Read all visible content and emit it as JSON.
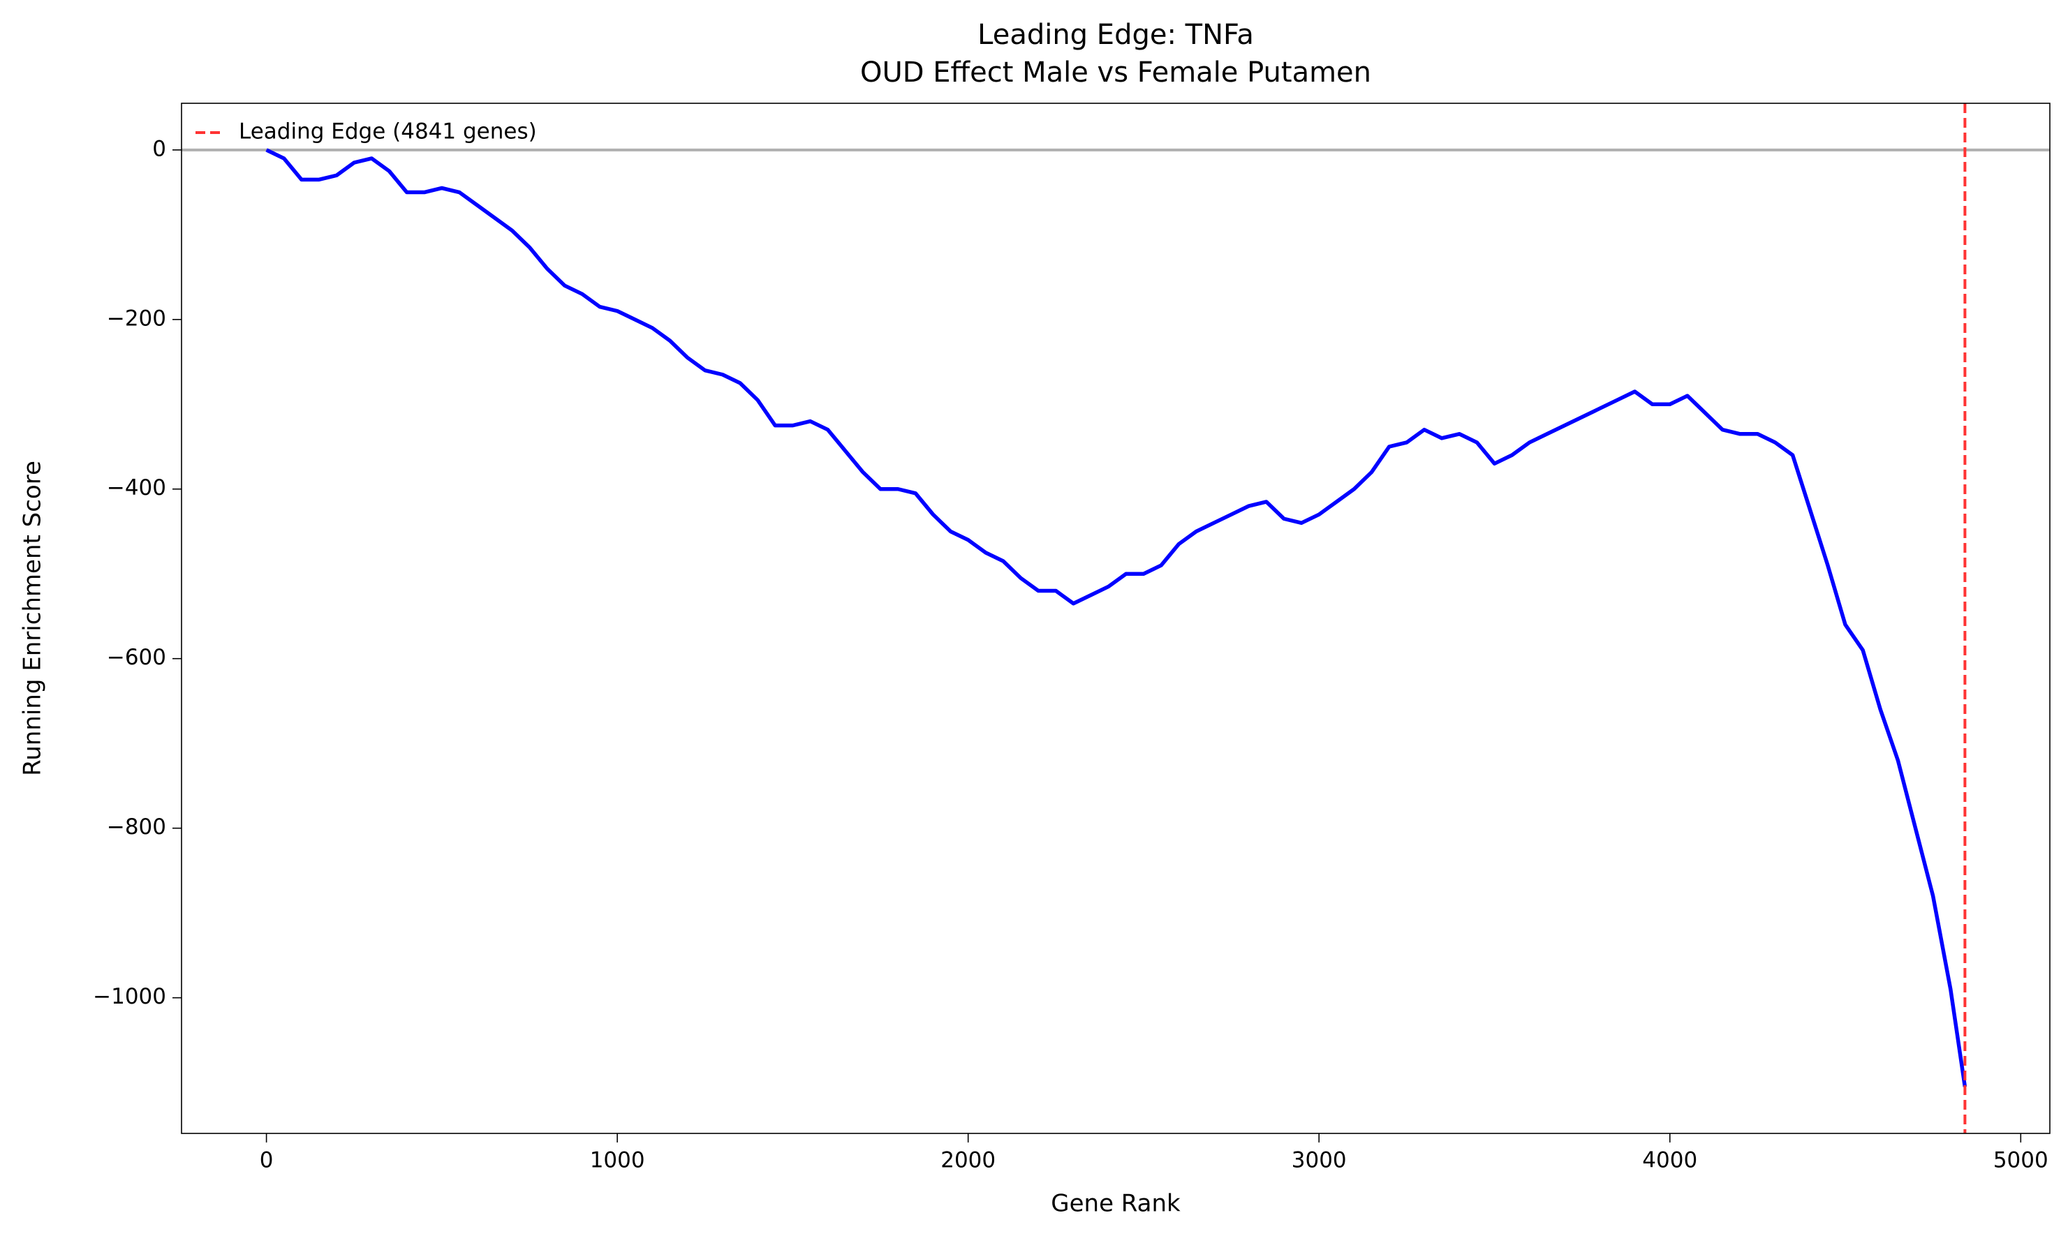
{
  "chart_data": {
    "type": "line",
    "title": "Leading Edge: TNFa",
    "subtitle": "OUD Effect Male vs Female Putamen",
    "x_label": "Gene Rank",
    "y_label": "Running Enrichment Score",
    "x": [
      0,
      50,
      100,
      150,
      200,
      250,
      300,
      350,
      400,
      450,
      500,
      550,
      600,
      650,
      700,
      750,
      800,
      850,
      900,
      950,
      1000,
      1050,
      1100,
      1150,
      1200,
      1250,
      1300,
      1350,
      1400,
      1450,
      1500,
      1550,
      1600,
      1650,
      1700,
      1750,
      1800,
      1850,
      1900,
      1950,
      2000,
      2050,
      2100,
      2150,
      2200,
      2250,
      2300,
      2350,
      2400,
      2450,
      2500,
      2550,
      2600,
      2650,
      2700,
      2750,
      2800,
      2850,
      2900,
      2950,
      3000,
      3050,
      3100,
      3150,
      3200,
      3250,
      3300,
      3350,
      3400,
      3450,
      3500,
      3550,
      3600,
      3650,
      3700,
      3750,
      3800,
      3850,
      3900,
      3950,
      4000,
      4050,
      4100,
      4150,
      4200,
      4250,
      4300,
      4350,
      4400,
      4450,
      4500,
      4550,
      4600,
      4650,
      4700,
      4750,
      4800,
      4841
    ],
    "series": [
      {
        "name": "Running Enrichment Score",
        "color": "#0000ff",
        "values": [
          0,
          -10,
          -35,
          -35,
          -30,
          -15,
          -10,
          -25,
          -50,
          -50,
          -45,
          -50,
          -65,
          -80,
          -95,
          -115,
          -140,
          -160,
          -170,
          -185,
          -190,
          -200,
          -210,
          -225,
          -245,
          -260,
          -265,
          -275,
          -295,
          -325,
          -325,
          -320,
          -330,
          -355,
          -380,
          -400,
          -400,
          -405,
          -430,
          -450,
          -460,
          -475,
          -485,
          -505,
          -520,
          -520,
          -535,
          -525,
          -515,
          -500,
          -500,
          -490,
          -465,
          -450,
          -440,
          -430,
          -420,
          -415,
          -435,
          -440,
          -430,
          -415,
          -400,
          -380,
          -350,
          -345,
          -330,
          -340,
          -335,
          -345,
          -370,
          -360,
          -345,
          -335,
          -325,
          -315,
          -305,
          -295,
          -285,
          -300,
          -300,
          -290,
          -310,
          -330,
          -335,
          -335,
          -345,
          -360,
          -425,
          -490,
          -560,
          -590,
          -660,
          -720,
          -800,
          -880,
          -990,
          -1105
        ]
      }
    ],
    "hline": {
      "value": 0,
      "color": "#b0b0b0"
    },
    "vline": {
      "value": 4841,
      "color": "#ff3333",
      "name": "Leading Edge (4841 genes)"
    },
    "xlim": [
      -242,
      5083
    ],
    "ylim": [
      -1160,
      55
    ],
    "xticks": [
      0,
      1000,
      2000,
      3000,
      4000,
      5000
    ],
    "yticks": [
      {
        "value": -1000,
        "label": "−1000"
      },
      {
        "value": -800,
        "label": "−800"
      },
      {
        "value": -600,
        "label": "−600"
      },
      {
        "value": -400,
        "label": "−400"
      },
      {
        "value": -200,
        "label": "−200"
      },
      0
    ],
    "legend": "upper left"
  }
}
